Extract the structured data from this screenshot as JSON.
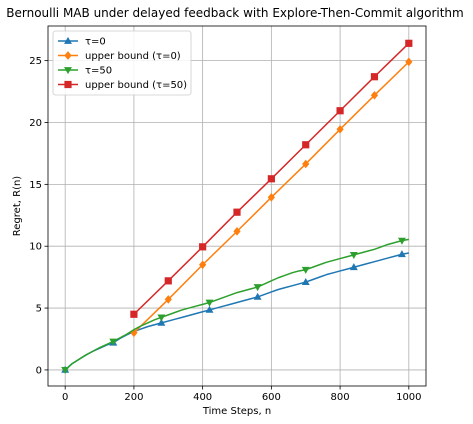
{
  "chart_data": {
    "type": "line",
    "title": "Bernoulli MAB under delayed feedback with Explore-Then-Commit algorithm",
    "xlabel": "Time Steps, n",
    "ylabel": "Regret, R(n)",
    "xlim": [
      -50,
      1050
    ],
    "ylim": [
      -1.3,
      27.8
    ],
    "xticks": [
      0,
      200,
      400,
      600,
      800,
      1000
    ],
    "yticks": [
      0,
      5,
      10,
      15,
      20,
      25
    ],
    "grid": true,
    "legend_position": "top-left",
    "series": [
      {
        "name": "τ=0",
        "color": "#1f77b4",
        "marker": "triangle-up",
        "x": [
          0,
          20,
          40,
          60,
          80,
          100,
          120,
          140,
          160,
          180,
          200,
          220,
          240,
          260,
          280,
          300,
          320,
          340,
          360,
          380,
          400,
          420,
          440,
          460,
          480,
          500,
          520,
          540,
          560,
          580,
          600,
          620,
          640,
          660,
          680,
          700,
          720,
          740,
          760,
          780,
          800,
          820,
          840,
          860,
          880,
          900,
          920,
          940,
          960,
          980,
          1000
        ],
        "y": [
          0,
          0.5,
          0.85,
          1.2,
          1.5,
          1.75,
          2.0,
          2.2,
          2.55,
          2.85,
          3.1,
          3.3,
          3.5,
          3.65,
          3.8,
          3.95,
          4.1,
          4.25,
          4.4,
          4.55,
          4.7,
          4.85,
          5.0,
          5.15,
          5.3,
          5.45,
          5.6,
          5.75,
          5.9,
          6.1,
          6.3,
          6.5,
          6.65,
          6.8,
          6.95,
          7.1,
          7.3,
          7.5,
          7.7,
          7.85,
          8.0,
          8.15,
          8.3,
          8.45,
          8.6,
          8.75,
          8.9,
          9.05,
          9.2,
          9.35,
          9.45
        ],
        "marker_x": [
          0,
          140,
          280,
          420,
          560,
          700,
          840,
          980
        ]
      },
      {
        "name": "upper bound (τ=0)",
        "color": "#ff7f0e",
        "marker": "diamond",
        "x": [
          200,
          300,
          400,
          500,
          600,
          700,
          800,
          900,
          1000
        ],
        "y": [
          3.0,
          5.7,
          8.5,
          11.2,
          13.95,
          16.65,
          19.45,
          22.2,
          24.9
        ],
        "marker_x": [
          200,
          300,
          400,
          500,
          600,
          700,
          800,
          900,
          1000
        ]
      },
      {
        "name": "τ=50",
        "color": "#2ca02c",
        "marker": "triangle-down",
        "x": [
          0,
          20,
          40,
          60,
          80,
          100,
          120,
          140,
          160,
          180,
          200,
          220,
          240,
          260,
          280,
          300,
          320,
          340,
          360,
          380,
          400,
          420,
          440,
          460,
          480,
          500,
          520,
          540,
          560,
          580,
          600,
          620,
          640,
          660,
          680,
          700,
          720,
          740,
          760,
          780,
          800,
          820,
          840,
          860,
          880,
          900,
          920,
          940,
          960,
          980,
          1000
        ],
        "y": [
          0,
          0.5,
          0.85,
          1.2,
          1.5,
          1.8,
          2.05,
          2.3,
          2.6,
          2.9,
          3.25,
          3.55,
          3.8,
          4.05,
          4.25,
          4.45,
          4.65,
          4.85,
          5.0,
          5.15,
          5.3,
          5.45,
          5.65,
          5.85,
          6.05,
          6.25,
          6.4,
          6.55,
          6.7,
          6.95,
          7.2,
          7.45,
          7.65,
          7.85,
          8.0,
          8.1,
          8.3,
          8.5,
          8.7,
          8.85,
          9.0,
          9.15,
          9.3,
          9.45,
          9.6,
          9.75,
          9.95,
          10.15,
          10.3,
          10.45,
          10.55
        ],
        "marker_x": [
          0,
          140,
          280,
          420,
          560,
          700,
          840,
          980
        ]
      },
      {
        "name": "upper bound (τ=50)",
        "color": "#d62728",
        "marker": "square",
        "x": [
          200,
          300,
          400,
          500,
          600,
          700,
          800,
          900,
          1000
        ],
        "y": [
          4.5,
          7.2,
          9.95,
          12.75,
          15.45,
          18.2,
          20.95,
          23.7,
          26.4
        ],
        "marker_x": [
          200,
          300,
          400,
          500,
          600,
          700,
          800,
          900,
          1000
        ]
      }
    ]
  }
}
